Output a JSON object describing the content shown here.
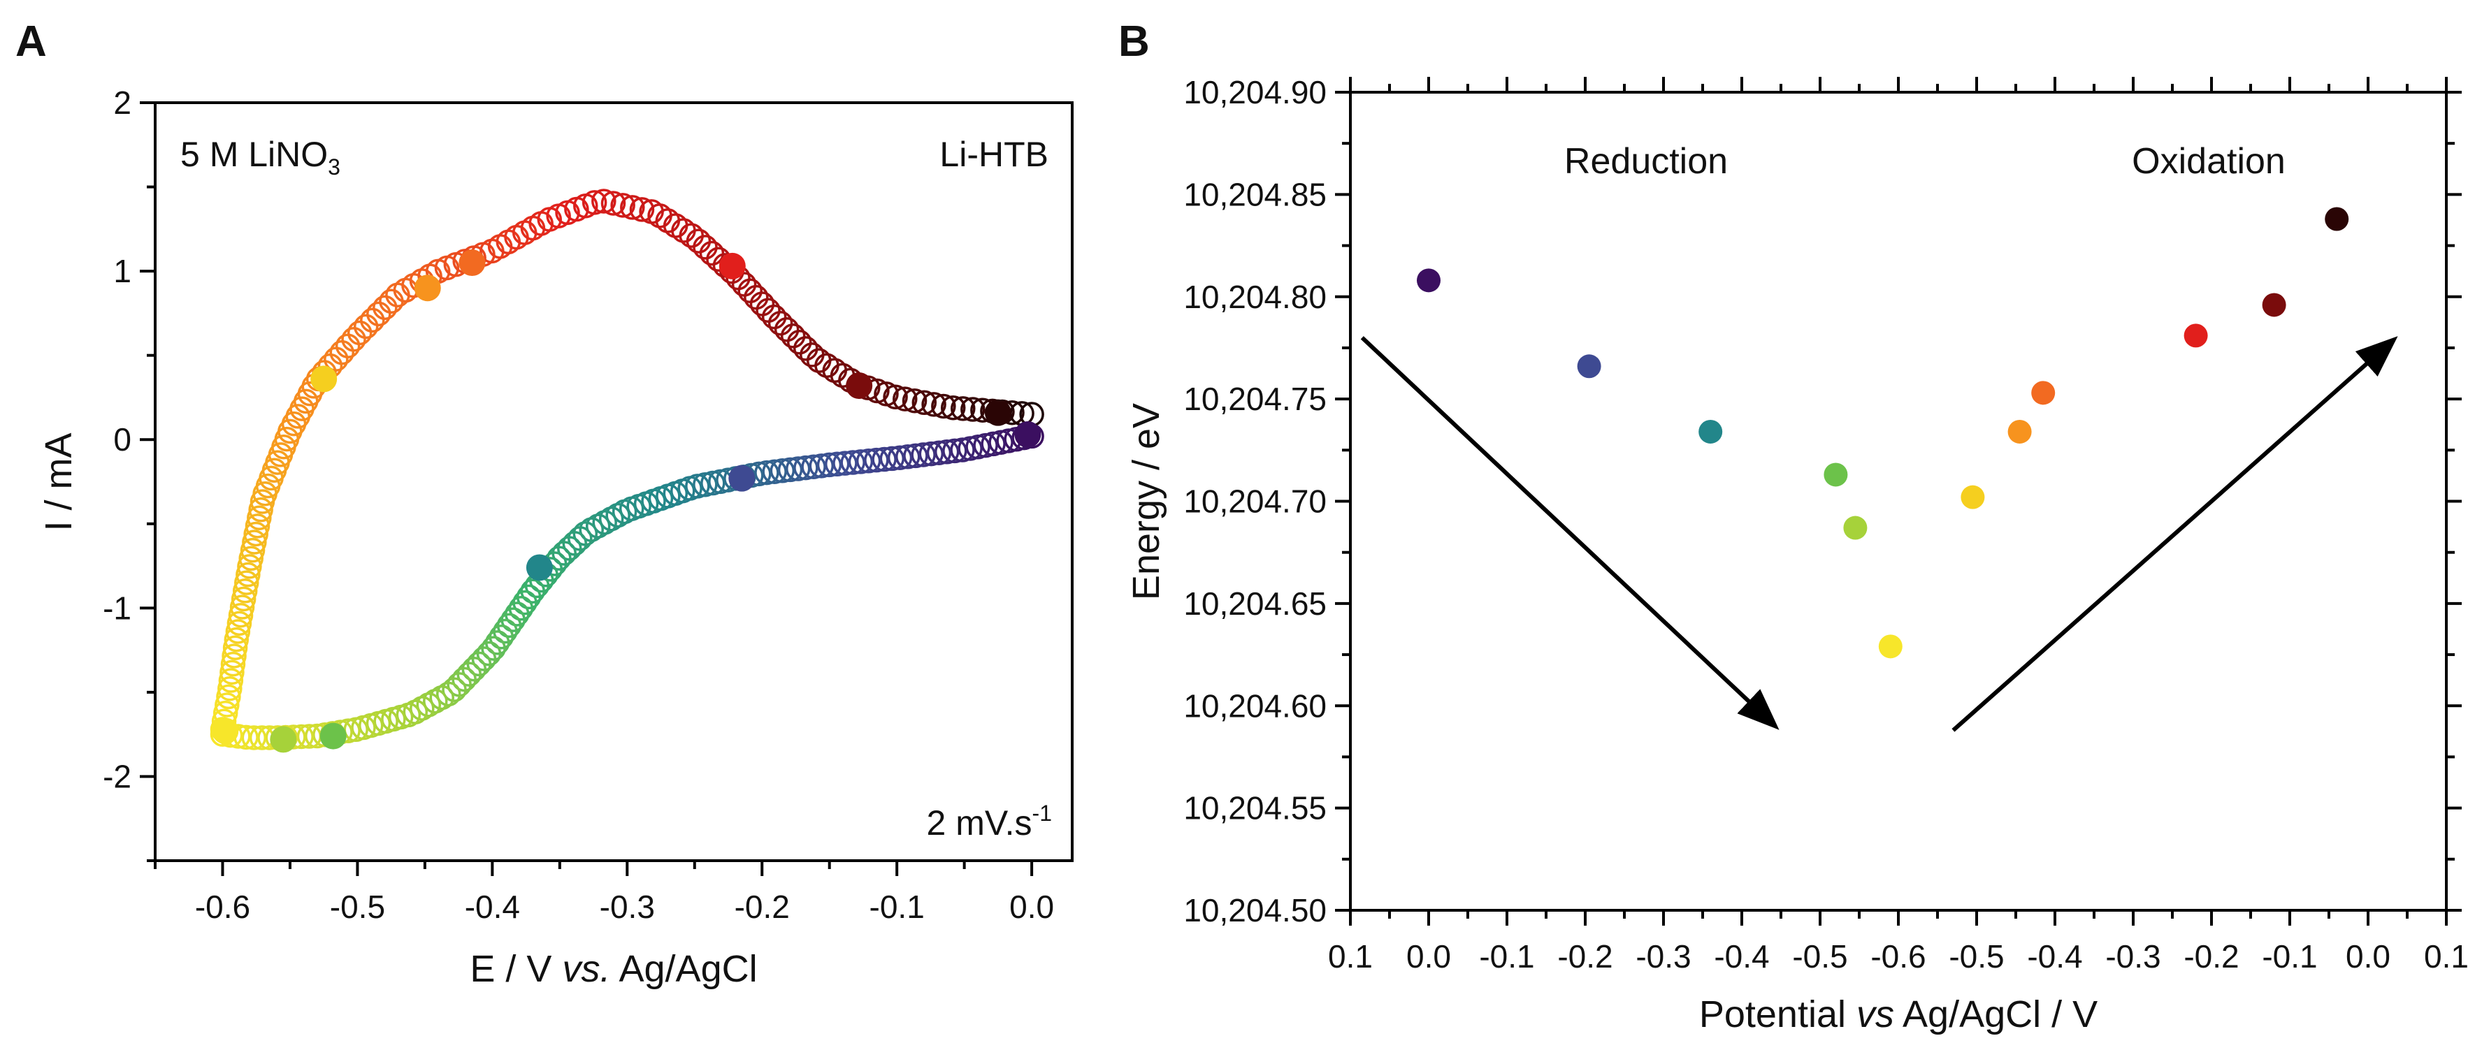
{
  "chart_data": [
    {
      "panel": "A",
      "type": "scatter",
      "title": "",
      "xlabel": "E / V vs. Ag/AgCl",
      "xlabel_parts": [
        "E / V ",
        "vs.",
        " Ag/AgCl"
      ],
      "ylabel": "I / mA",
      "xlim": [
        -0.65,
        0.03
      ],
      "ylim": [
        -2.5,
        2.0
      ],
      "xticks": [
        -0.6,
        -0.5,
        -0.4,
        -0.3,
        -0.2,
        -0.1,
        0.0
      ],
      "xtick_labels": [
        "-0.6",
        "-0.5",
        "-0.4",
        "-0.3",
        "-0.2",
        "-0.1",
        "0.0"
      ],
      "yticks": [
        -2,
        -1,
        0,
        1,
        2
      ],
      "ytick_labels": [
        "-2",
        "-1",
        "0",
        "1",
        "2"
      ],
      "grid": false,
      "annotations": {
        "electrolyte": "5 M LiNO",
        "electrolyte_sub": "3",
        "material": "Li-HTB",
        "scan_rate": "2 mV.s",
        "scan_rate_sup": "-1"
      },
      "cathodic_curve": {
        "x": [
          0.0,
          -0.05,
          -0.1,
          -0.15,
          -0.2,
          -0.25,
          -0.3,
          -0.33,
          -0.35,
          -0.37,
          -0.4,
          -0.43,
          -0.46,
          -0.5,
          -0.53,
          -0.56,
          -0.58,
          -0.6
        ],
        "y": [
          0.02,
          -0.06,
          -0.11,
          -0.15,
          -0.2,
          -0.28,
          -0.42,
          -0.55,
          -0.7,
          -0.9,
          -1.25,
          -1.5,
          -1.63,
          -1.72,
          -1.76,
          -1.77,
          -1.77,
          -1.75
        ]
      },
      "anodic_curve": {
        "x": [
          -0.6,
          -0.595,
          -0.59,
          -0.58,
          -0.57,
          -0.55,
          -0.53,
          -0.5,
          -0.47,
          -0.44,
          -0.4,
          -0.36,
          -0.32,
          -0.28,
          -0.25,
          -0.22,
          -0.19,
          -0.16,
          -0.13,
          -0.1,
          -0.06,
          -0.03,
          0.0
        ],
        "y": [
          -1.72,
          -1.5,
          -1.2,
          -0.75,
          -0.35,
          0.05,
          0.35,
          0.62,
          0.86,
          1.0,
          1.12,
          1.3,
          1.42,
          1.35,
          1.2,
          0.98,
          0.72,
          0.48,
          0.33,
          0.25,
          0.19,
          0.17,
          0.15
        ]
      },
      "highlighted_points": [
        {
          "x": -0.003,
          "y": 0.03,
          "color": "#3b0f60"
        },
        {
          "x": -0.215,
          "y": -0.23,
          "color": "#3e4a92"
        },
        {
          "x": -0.365,
          "y": -0.76,
          "color": "#22868a"
        },
        {
          "x": -0.518,
          "y": -1.76,
          "color": "#6cc24a"
        },
        {
          "x": -0.555,
          "y": -1.78,
          "color": "#a6d23a"
        },
        {
          "x": -0.598,
          "y": -1.73,
          "color": "#f7e62a"
        },
        {
          "x": -0.525,
          "y": 0.36,
          "color": "#f5cf1f"
        },
        {
          "x": -0.448,
          "y": 0.9,
          "color": "#f7931e"
        },
        {
          "x": -0.415,
          "y": 1.05,
          "color": "#f26a21"
        },
        {
          "x": -0.222,
          "y": 1.03,
          "color": "#e11f1c"
        },
        {
          "x": -0.128,
          "y": 0.32,
          "color": "#7a0c0c"
        },
        {
          "x": -0.025,
          "y": 0.16,
          "color": "#2a0505"
        }
      ]
    },
    {
      "panel": "B",
      "type": "scatter",
      "title": "",
      "xlabel": "Potential vs Ag/AgCl / V",
      "xlabel_parts": [
        "Potential ",
        "vs",
        " Ag/AgCl / V"
      ],
      "ylabel": "Energy / eV",
      "xlim_note": "reversed sweep axis: 0.1 → -0.6 → 0.1",
      "xticks_position": [
        0.1,
        0.0,
        -0.1,
        -0.2,
        -0.3,
        -0.4,
        -0.5,
        -0.6,
        -0.5,
        -0.4,
        -0.3,
        -0.2,
        -0.1,
        0.0,
        0.1
      ],
      "xtick_labels": [
        "0.1",
        "0.0",
        "-0.1",
        "-0.2",
        "-0.3",
        "-0.4",
        "-0.5",
        "-0.6",
        "-0.5",
        "-0.4",
        "-0.3",
        "-0.2",
        "-0.1",
        "0.0",
        "0.1"
      ],
      "ylim": [
        10204.5,
        10204.9
      ],
      "yticks": [
        10204.5,
        10204.55,
        10204.6,
        10204.65,
        10204.7,
        10204.75,
        10204.8,
        10204.85,
        10204.9
      ],
      "ytick_labels": [
        "10,204.50",
        "10,204.55",
        "10,204.60",
        "10,204.65",
        "10,204.70",
        "10,204.75",
        "10,204.80",
        "10,204.85",
        "10,204.90"
      ],
      "grid": false,
      "annotations": {
        "left": "Reduction",
        "right": "Oxidation"
      },
      "points": [
        {
          "sweep": "reduction",
          "potential": 0.0,
          "energy": 10204.808,
          "color": "#3b0f60"
        },
        {
          "sweep": "reduction",
          "potential": -0.205,
          "energy": 10204.766,
          "color": "#3e4a92"
        },
        {
          "sweep": "reduction",
          "potential": -0.36,
          "energy": 10204.734,
          "color": "#22868a"
        },
        {
          "sweep": "reduction",
          "potential": -0.52,
          "energy": 10204.713,
          "color": "#6cc24a"
        },
        {
          "sweep": "reduction",
          "potential": -0.545,
          "energy": 10204.687,
          "color": "#a6d23a"
        },
        {
          "sweep": "reduction",
          "potential": -0.59,
          "energy": 10204.629,
          "color": "#f7e62a"
        },
        {
          "sweep": "oxidation",
          "potential": -0.505,
          "energy": 10204.702,
          "color": "#f5cf1f"
        },
        {
          "sweep": "oxidation",
          "potential": -0.445,
          "energy": 10204.734,
          "color": "#f7931e"
        },
        {
          "sweep": "oxidation",
          "potential": -0.415,
          "energy": 10204.753,
          "color": "#f26a21"
        },
        {
          "sweep": "oxidation",
          "potential": -0.22,
          "energy": 10204.781,
          "color": "#e11f1c"
        },
        {
          "sweep": "oxidation",
          "potential": -0.12,
          "energy": 10204.796,
          "color": "#7a0c0c"
        },
        {
          "sweep": "oxidation",
          "potential": -0.04,
          "energy": 10204.838,
          "color": "#2a0505"
        }
      ],
      "arrows": [
        {
          "name": "reduction-arrow",
          "from": {
            "x": 0.085,
            "energy": 10204.78
          },
          "to": {
            "x": -0.44,
            "energy": 10204.591
          }
        },
        {
          "name": "oxidation-arrow",
          "from": {
            "x": -0.53,
            "energy": 10204.588
          },
          "to": {
            "x": 0.03,
            "energy": 10204.778
          }
        }
      ]
    }
  ],
  "panels": {
    "a_letter": "A",
    "b_letter": "B"
  }
}
